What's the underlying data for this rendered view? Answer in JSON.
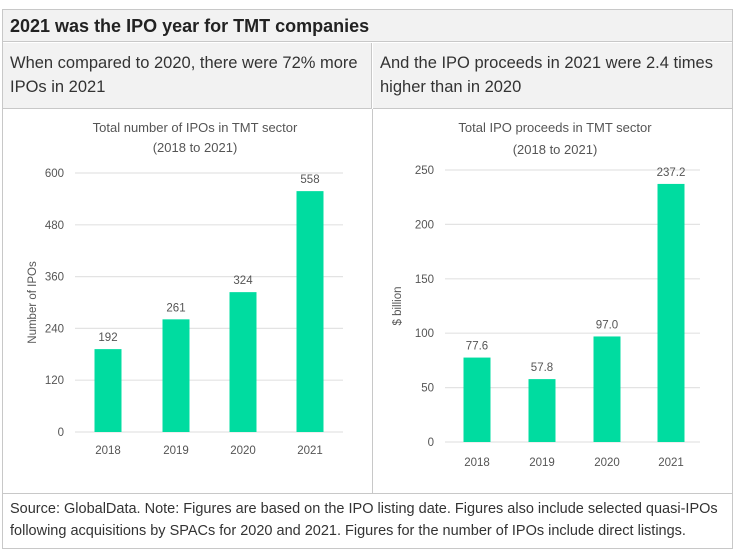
{
  "header": {
    "title": "2021 was the IPO year for TMT companies",
    "left_subtitle": "When compared to 2020, there were 72% more IPOs in 2021",
    "right_subtitle": "And the IPO proceeds in 2021 were 2.4 times higher than in 2020"
  },
  "footer": {
    "note": "Source: GlobalData. Note: Figures are based on the IPO listing date. Figures also include selected quasi-IPOs following acquisitions by SPACs for 2020 and 2021. Figures for the number of IPOs include direct listings."
  },
  "colors": {
    "bar": "#00dca0",
    "grid": "#e3e3e3",
    "header_bg": "#f2f2f2"
  },
  "chart_data": [
    {
      "type": "bar",
      "title": [
        "Total number of IPOs in TMT sector",
        "(2018 to 2021)"
      ],
      "xlabel": "",
      "ylabel": "Number of IPOs",
      "categories": [
        "2018",
        "2019",
        "2020",
        "2021"
      ],
      "values": [
        192,
        261,
        324,
        558
      ],
      "data_labels": [
        "192",
        "261",
        "324",
        "558"
      ],
      "ylim": [
        0,
        600
      ],
      "yticks": [
        0,
        120,
        240,
        360,
        480,
        600
      ],
      "grid": true
    },
    {
      "type": "bar",
      "title": [
        "Total IPO proceeds in TMT sector",
        "(2018 to 2021)"
      ],
      "xlabel": "",
      "ylabel": "$ billion",
      "categories": [
        "2018",
        "2019",
        "2020",
        "2021"
      ],
      "values": [
        77.6,
        57.8,
        97.0,
        237.2
      ],
      "data_labels": [
        "77.6",
        "57.8",
        "97.0",
        "237.2"
      ],
      "ylim": [
        0,
        250
      ],
      "yticks": [
        0,
        50,
        100,
        150,
        200,
        250
      ],
      "grid": true
    }
  ]
}
